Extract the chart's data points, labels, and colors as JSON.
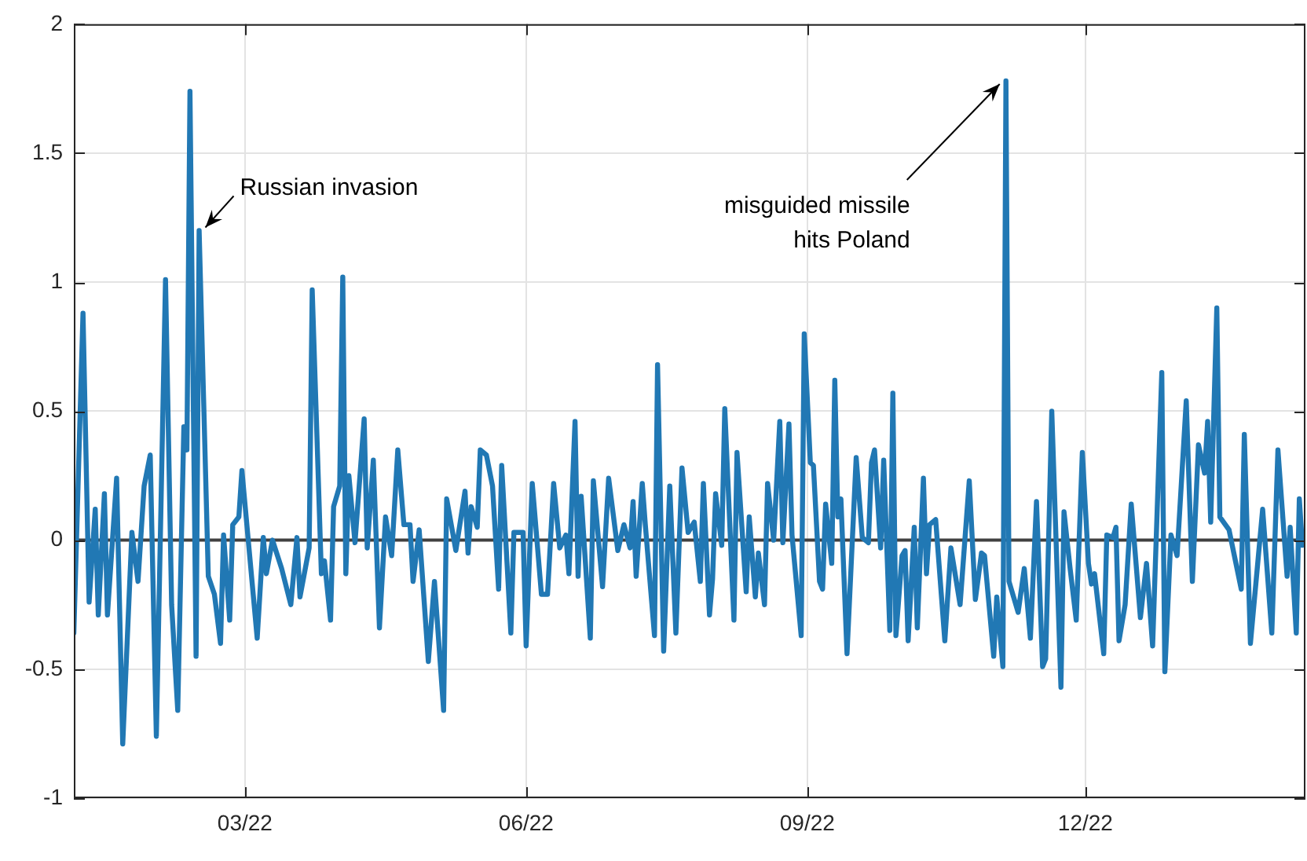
{
  "chart_data": {
    "type": "line",
    "color": "#2178b4",
    "marker": "none",
    "grid": true,
    "xlim": [
      "2022-01-04",
      "2023-02-11"
    ],
    "xticks": [
      {
        "value": "2022-03-01",
        "label": "03/22"
      },
      {
        "value": "2022-06-01",
        "label": "06/22"
      },
      {
        "value": "2022-09-01",
        "label": "09/22"
      },
      {
        "value": "2022-12-01",
        "label": "12/22"
      }
    ],
    "ylim": [
      -1,
      2
    ],
    "yticks": [
      -1,
      -0.5,
      0,
      0.5,
      1,
      1.5,
      2
    ],
    "ref_lines": [
      {
        "axis": "y",
        "value": 0,
        "color": "#404040"
      }
    ],
    "annotations": [
      {
        "text": "Russian invasion",
        "x": "2022-02-14",
        "y": 1.2
      },
      {
        "text": "misguided missile\nhits Poland",
        "x": "2022-11-05",
        "y": 1.78
      }
    ],
    "x": [
      "2022-01-04",
      "2022-01-07",
      "2022-01-09",
      "2022-01-11",
      "2022-01-12",
      "2022-01-14",
      "2022-01-15",
      "2022-01-18",
      "2022-01-20",
      "2022-01-23",
      "2022-01-25",
      "2022-01-27",
      "2022-01-29",
      "2022-01-31",
      "2022-02-03",
      "2022-02-05",
      "2022-02-07",
      "2022-02-09",
      "2022-02-10",
      "2022-02-11",
      "2022-02-13",
      "2022-02-14",
      "2022-02-17",
      "2022-02-19",
      "2022-02-21",
      "2022-02-22",
      "2022-02-24",
      "2022-02-25",
      "2022-02-27",
      "2022-02-28",
      "2022-03-05",
      "2022-03-07",
      "2022-03-08",
      "2022-03-10",
      "2022-03-13",
      "2022-03-16",
      "2022-03-18",
      "2022-03-19",
      "2022-03-22",
      "2022-03-23",
      "2022-03-26",
      "2022-03-27",
      "2022-03-29",
      "2022-03-30",
      "2022-04-01",
      "2022-04-02",
      "2022-04-03",
      "2022-04-04",
      "2022-04-06",
      "2022-04-09",
      "2022-04-10",
      "2022-04-12",
      "2022-04-14",
      "2022-04-16",
      "2022-04-18",
      "2022-04-20",
      "2022-04-22",
      "2022-04-24",
      "2022-04-25",
      "2022-04-27",
      "2022-04-30",
      "2022-05-02",
      "2022-05-05",
      "2022-05-06",
      "2022-05-09",
      "2022-05-12",
      "2022-05-13",
      "2022-05-14",
      "2022-05-16",
      "2022-05-17",
      "2022-05-19",
      "2022-05-21",
      "2022-05-23",
      "2022-05-24",
      "2022-05-27",
      "2022-05-28",
      "2022-05-31",
      "2022-06-01",
      "2022-06-03",
      "2022-06-06",
      "2022-06-08",
      "2022-06-10",
      "2022-06-12",
      "2022-06-14",
      "2022-06-15",
      "2022-06-17",
      "2022-06-18",
      "2022-06-19",
      "2022-06-22",
      "2022-06-23",
      "2022-06-26",
      "2022-06-28",
      "2022-07-01",
      "2022-07-03",
      "2022-07-05",
      "2022-07-06",
      "2022-07-07",
      "2022-07-09",
      "2022-07-10",
      "2022-07-13",
      "2022-07-14",
      "2022-07-16",
      "2022-07-18",
      "2022-07-20",
      "2022-07-22",
      "2022-07-24",
      "2022-07-26",
      "2022-07-28",
      "2022-07-29",
      "2022-07-31",
      "2022-08-01",
      "2022-08-02",
      "2022-08-04",
      "2022-08-05",
      "2022-08-08",
      "2022-08-09",
      "2022-08-12",
      "2022-08-13",
      "2022-08-15",
      "2022-08-16",
      "2022-08-18",
      "2022-08-19",
      "2022-08-21",
      "2022-08-23",
      "2022-08-24",
      "2022-08-26",
      "2022-08-27",
      "2022-08-30",
      "2022-08-31",
      "2022-09-02",
      "2022-09-03",
      "2022-09-05",
      "2022-09-06",
      "2022-09-07",
      "2022-09-09",
      "2022-09-10",
      "2022-09-11",
      "2022-09-12",
      "2022-09-14",
      "2022-09-17",
      "2022-09-19",
      "2022-09-21",
      "2022-09-22",
      "2022-09-23",
      "2022-09-25",
      "2022-09-26",
      "2022-09-28",
      "2022-09-29",
      "2022-09-30",
      "2022-10-02",
      "2022-10-03",
      "2022-10-04",
      "2022-10-06",
      "2022-10-07",
      "2022-10-09",
      "2022-10-10",
      "2022-10-11",
      "2022-10-13",
      "2022-10-16",
      "2022-10-18",
      "2022-10-21",
      "2022-10-24",
      "2022-10-26",
      "2022-10-28",
      "2022-10-29",
      "2022-11-01",
      "2022-11-02",
      "2022-11-04",
      "2022-11-05",
      "2022-11-06",
      "2022-11-09",
      "2022-11-11",
      "2022-11-13",
      "2022-11-15",
      "2022-11-17",
      "2022-11-18",
      "2022-11-20",
      "2022-11-23",
      "2022-11-24",
      "2022-11-26",
      "2022-11-28",
      "2022-11-30",
      "2022-12-02",
      "2022-12-03",
      "2022-12-04",
      "2022-12-07",
      "2022-12-08",
      "2022-12-10",
      "2022-12-11",
      "2022-12-12",
      "2022-12-14",
      "2022-12-16",
      "2022-12-19",
      "2022-12-21",
      "2022-12-23",
      "2022-12-26",
      "2022-12-27",
      "2022-12-29",
      "2022-12-31",
      "2023-01-03",
      "2023-01-05",
      "2023-01-07",
      "2023-01-09",
      "2023-01-10",
      "2023-01-11",
      "2023-01-13",
      "2023-01-14",
      "2023-01-17",
      "2023-01-21",
      "2023-01-22",
      "2023-01-24",
      "2023-01-28",
      "2023-01-31",
      "2023-02-02",
      "2023-02-05",
      "2023-02-06",
      "2023-02-08",
      "2023-02-09",
      "2023-02-10"
    ],
    "values": [
      -0.36,
      0.88,
      -0.24,
      0.12,
      -0.29,
      0.18,
      -0.29,
      0.24,
      -0.79,
      0.03,
      -0.16,
      0.21,
      0.33,
      -0.76,
      1.01,
      -0.25,
      -0.66,
      0.44,
      0.35,
      1.74,
      -0.45,
      1.2,
      -0.14,
      -0.21,
      -0.4,
      0.02,
      -0.31,
      0.06,
      0.09,
      0.27,
      -0.38,
      0.01,
      -0.13,
      0,
      -0.11,
      -0.25,
      0.01,
      -0.22,
      -0.03,
      0.97,
      -0.13,
      -0.08,
      -0.31,
      0.13,
      0.21,
      1.02,
      -0.13,
      0.25,
      -0.01,
      0.47,
      -0.03,
      0.31,
      -0.34,
      0.09,
      -0.06,
      0.35,
      0.06,
      0.06,
      -0.16,
      0.04,
      -0.47,
      -0.16,
      -0.66,
      0.16,
      -0.04,
      0.19,
      -0.05,
      0.13,
      0.05,
      0.35,
      0.33,
      0.21,
      -0.19,
      0.29,
      -0.36,
      0.03,
      0.03,
      -0.41,
      0.22,
      -0.21,
      -0.21,
      0.22,
      -0.03,
      0.02,
      -0.13,
      0.46,
      -0.14,
      0.17,
      -0.38,
      0.23,
      -0.18,
      0.24,
      -0.04,
      0.06,
      -0.03,
      0.15,
      -0.14,
      0.22,
      0.06,
      -0.37,
      0.68,
      -0.43,
      0.21,
      -0.36,
      0.28,
      0.03,
      0.07,
      -0.16,
      0.22,
      -0.29,
      -0.15,
      0.18,
      -0.02,
      0.51,
      -0.31,
      0.34,
      -0.2,
      0.09,
      -0.22,
      -0.05,
      -0.25,
      0.22,
      0,
      0.46,
      -0.01,
      0.45,
      0.02,
      -0.37,
      0.8,
      0.3,
      0.29,
      -0.16,
      -0.19,
      0.14,
      -0.09,
      0.62,
      0.09,
      0.16,
      -0.44,
      0.32,
      0.01,
      -0.01,
      0.3,
      0.35,
      -0.03,
      0.31,
      -0.35,
      0.57,
      -0.37,
      -0.06,
      -0.04,
      -0.39,
      0.05,
      -0.34,
      0.24,
      -0.13,
      0.06,
      0.08,
      -0.39,
      -0.03,
      -0.25,
      0.23,
      -0.23,
      -0.05,
      -0.06,
      -0.45,
      -0.22,
      -0.49,
      1.78,
      -0.16,
      -0.28,
      -0.11,
      -0.38,
      0.15,
      -0.49,
      -0.46,
      0.5,
      -0.57,
      0.11,
      -0.11,
      -0.31,
      0.34,
      -0.09,
      -0.17,
      -0.13,
      -0.44,
      0.02,
      0.01,
      0.05,
      -0.39,
      -0.25,
      0.14,
      -0.3,
      -0.09,
      -0.41,
      0.65,
      -0.51,
      0.02,
      -0.06,
      0.54,
      -0.16,
      0.37,
      0.26,
      0.46,
      0.07,
      0.9,
      0.09,
      0.04,
      -0.19,
      0.41,
      -0.4,
      0.12,
      -0.36,
      0.35,
      -0.14,
      0.05,
      -0.36,
      0.16,
      -0.02
    ]
  }
}
